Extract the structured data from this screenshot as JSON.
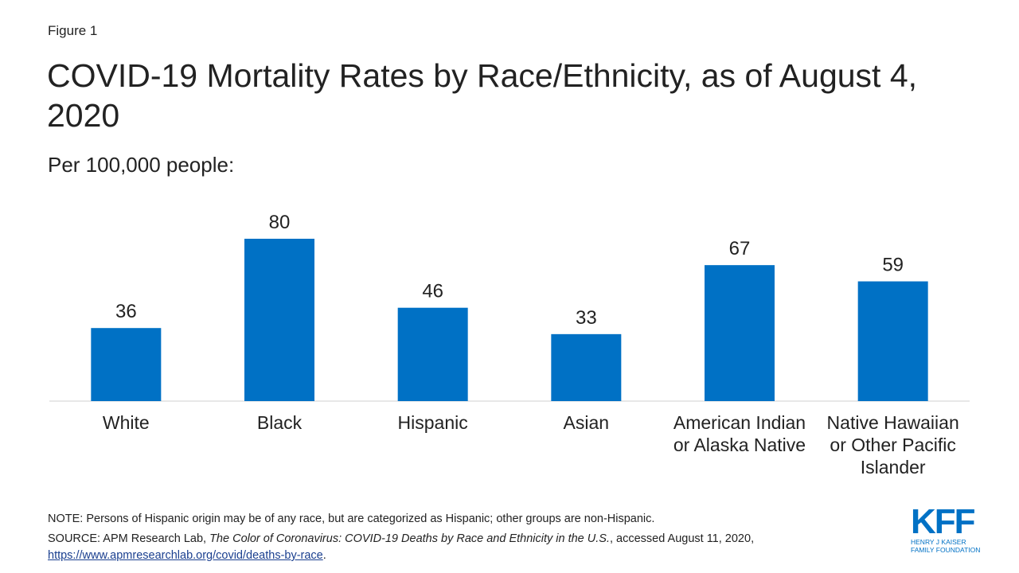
{
  "figure_label": "Figure 1",
  "chart_data": {
    "type": "bar",
    "title": "COVID-19 Mortality Rates by Race/Ethnicity, as of August 4, 2020",
    "subtitle": "Per 100,000 people:",
    "categories": [
      "White",
      "Black",
      "Hispanic",
      "Asian",
      "American Indian or Alaska Native",
      "Native Hawaiian or Other Pacific Islander"
    ],
    "values": [
      36,
      80,
      46,
      33,
      67,
      59
    ],
    "color": "#0071c5"
  },
  "note": "NOTE: Persons of Hispanic origin may be of any race, but are categorized as Hispanic; other groups are non-Hispanic.",
  "source": {
    "lead": "SOURCE: APM Research Lab, ",
    "title": "The Color of Coronavirus: COVID-19 Deaths by Race and Ethnicity in the U.S.",
    "accessed": ", accessed August 11, 2020,",
    "link": "https://www.apmresearchlab.org/covid/deaths-by-race",
    "end": "."
  },
  "logo": {
    "mark": "KFF",
    "line1": "HENRY J KAISER",
    "line2": "FAMILY FOUNDATION"
  }
}
